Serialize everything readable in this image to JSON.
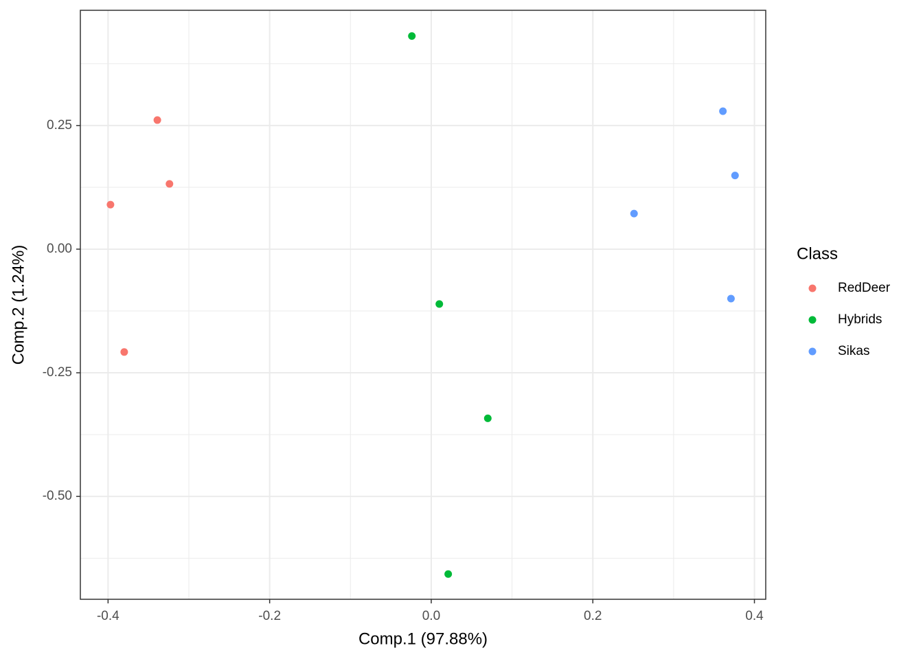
{
  "chart_data": {
    "type": "scatter",
    "x_label": "Comp.1 (97.88%)",
    "y_label": "Comp.2 (1.24%)",
    "legend_title": "Class",
    "legend_position": "right",
    "grid": true,
    "xlim": [
      -0.4343,
      0.414
    ],
    "ylim": [
      -0.708,
      0.483
    ],
    "xticks": [
      -0.4,
      -0.2,
      {
        "value": 0,
        "label": "0.0"
      },
      0.2,
      0.4
    ],
    "yticks": [
      0.25,
      {
        "value": 0,
        "label": "0.00"
      },
      {
        "value": -0.25,
        "label": "-0.25"
      },
      {
        "value": -0.5,
        "label": "-0.50"
      }
    ],
    "series": [
      {
        "name": "RedDeer",
        "color": "#F8766D",
        "x": [
          -0.339,
          -0.324,
          -0.397,
          -0.38
        ],
        "values": [
          0.261,
          0.132,
          0.09,
          -0.208
        ]
      },
      {
        "name": "Hybrids",
        "color": "#00BA38",
        "x": [
          -0.024,
          0.01,
          0.07,
          0.021
        ],
        "values": [
          0.431,
          -0.111,
          -0.342,
          -0.657
        ]
      },
      {
        "name": "Sikas",
        "color": "#619CFF",
        "x": [
          0.361,
          0.376,
          0.251,
          0.371
        ],
        "values": [
          0.279,
          0.149,
          0.072,
          -0.1
        ]
      }
    ]
  }
}
